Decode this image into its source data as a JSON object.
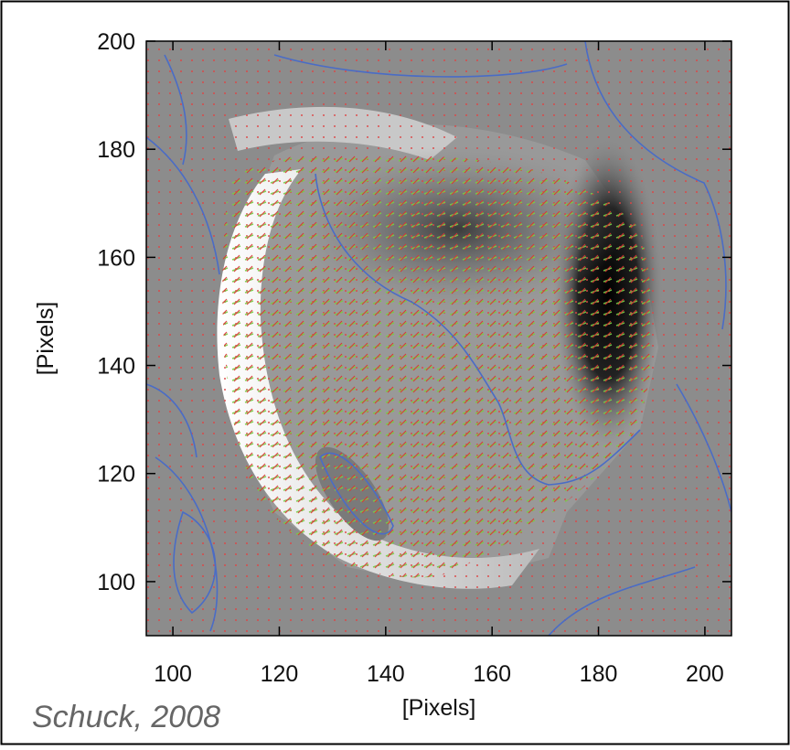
{
  "chart_data": {
    "type": "image",
    "xlabel": "[Pixels]",
    "ylabel": "[Pixels]",
    "xlim": [
      95,
      205
    ],
    "ylim": [
      90,
      200
    ],
    "xticks": [
      100,
      120,
      140,
      160,
      180,
      200
    ],
    "yticks": [
      100,
      120,
      140,
      160,
      180,
      200
    ],
    "annotation": "Schuck, 2008"
  }
}
